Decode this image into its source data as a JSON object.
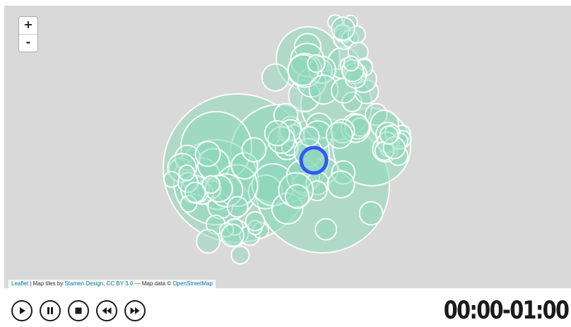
{
  "map": {
    "zoom_in_label": "+",
    "zoom_out_label": "-",
    "circle_fill": "#8fd8bc",
    "circle_stroke": "#ffffff",
    "highlight_color": "#3355ff",
    "attribution": {
      "leaflet": "Leaflet",
      "sep1": " | Map tiles by ",
      "stamen": "Stamen Design",
      "sep2": ", ",
      "license": "CC BY 3.0",
      "sep3": " — Map data © ",
      "osm": "OpenStreetMap"
    }
  },
  "controls": {
    "icons": [
      "play-icon",
      "pause-icon",
      "stop-icon",
      "rewind-icon",
      "fast-forward-icon"
    ]
  },
  "time_range": "00:00-01:00"
}
